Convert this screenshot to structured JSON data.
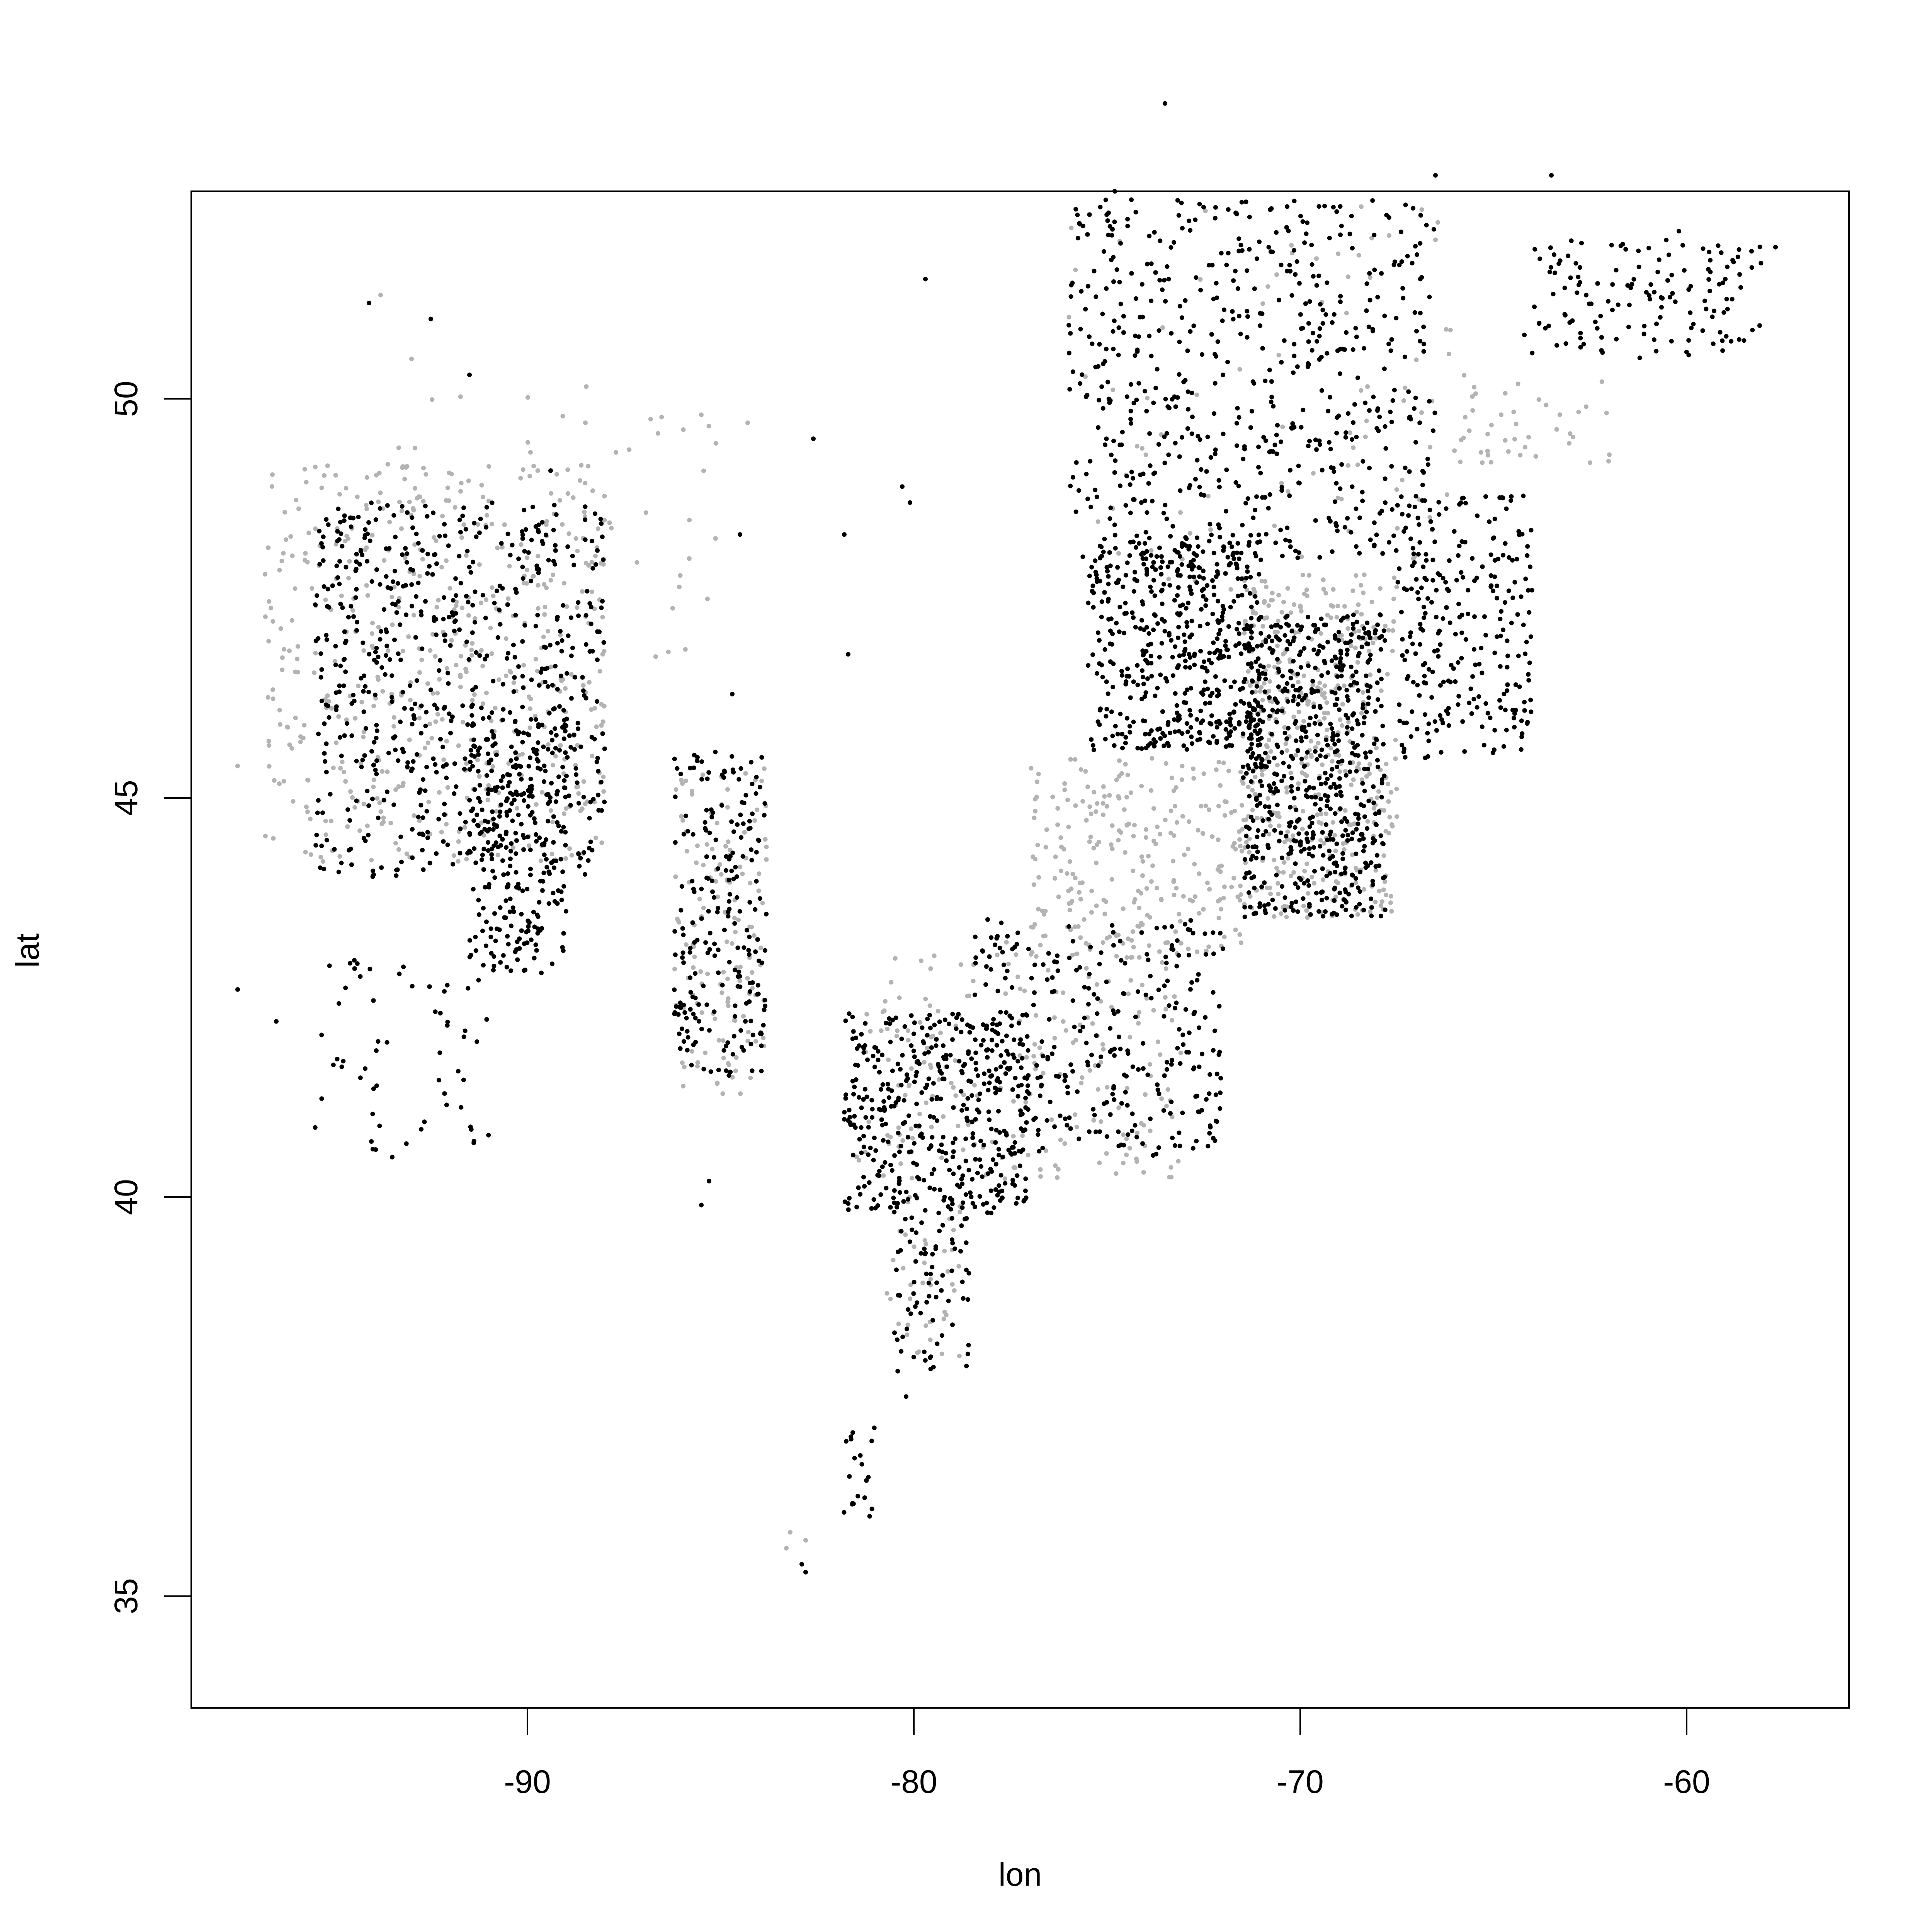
{
  "chart_data": {
    "type": "scatter",
    "title": "",
    "xlabel": "lon",
    "ylabel": "lat",
    "xlim": [
      -98.7,
      -55.8
    ],
    "ylim": [
      33.6,
      52.6
    ],
    "xticks": [
      -90,
      -80,
      -70,
      -60
    ],
    "yticks": [
      35,
      40,
      45,
      50
    ],
    "xtick_labels": [
      "-90",
      "-80",
      "-70",
      "-60"
    ],
    "ytick_labels": [
      "35",
      "40",
      "45",
      "50"
    ],
    "grid": false,
    "legend": "none",
    "series": [
      {
        "color": "#000000",
        "regions": [
          {
            "x": [
              -95.5,
              -88
            ],
            "y": [
              44,
              48.7
            ],
            "n": 650
          },
          {
            "x": [
              -91.5,
              -89
            ],
            "y": [
              42.8,
              46
            ],
            "n": 260
          },
          {
            "x": [
              -86.2,
              -83.8
            ],
            "y": [
              41.5,
              45.6
            ],
            "n": 220
          },
          {
            "x": [
              -81.8,
              -77
            ],
            "y": [
              39.8,
              42.3
            ],
            "n": 420
          },
          {
            "x": [
              -78.5,
              -72
            ],
            "y": [
              40.5,
              43.5
            ],
            "n": 300
          },
          {
            "x": [
              -75.5,
              -71
            ],
            "y": [
              45.6,
              48.3
            ],
            "n": 500
          },
          {
            "x": [
              -71.5,
              -67.8
            ],
            "y": [
              43.5,
              47.3
            ],
            "n": 650
          },
          {
            "x": [
              -67.5,
              -64
            ],
            "y": [
              45.5,
              48.8
            ],
            "n": 260
          },
          {
            "x": [
              -76,
              -66.5
            ],
            "y": [
              48,
              52.5
            ],
            "n": 600
          },
          {
            "x": [
              -64,
              -58
            ],
            "y": [
              50.5,
              52
            ],
            "n": 140
          },
          {
            "x": [
              -80.5,
              -78.5
            ],
            "y": [
              37.8,
              40
            ],
            "n": 80
          },
          {
            "x": [
              -82,
              -81
            ],
            "y": [
              36,
              37.2
            ],
            "n": 20
          },
          {
            "x": [
              -95.5,
              -91
            ],
            "y": [
              40.5,
              43
            ],
            "n": 60
          }
        ],
        "points": [
          [
            -82.8,
            35.3
          ],
          [
            -82.9,
            35.4
          ],
          [
            -63.5,
            52.8
          ],
          [
            -57.7,
            51.9
          ],
          [
            -74.8,
            52.6
          ],
          [
            -72.5,
            52.4
          ],
          [
            -66.5,
            52.8
          ],
          [
            -79.7,
            51.5
          ],
          [
            -94,
            40.6
          ],
          [
            -93.5,
            40.5
          ],
          [
            -97.5,
            42.6
          ],
          [
            -96.5,
            42.2
          ],
          [
            -85.5,
            39.9
          ],
          [
            -85.3,
            40.2
          ],
          [
            -78,
            39.8
          ],
          [
            -79,
            38.4
          ],
          [
            -80.5,
            38.3
          ],
          [
            -80.2,
            37.5
          ],
          [
            -94.1,
            51.2
          ],
          [
            -92.5,
            51
          ],
          [
            -91.5,
            50.3
          ],
          [
            -89.4,
            49.1
          ],
          [
            -84.5,
            48.3
          ],
          [
            -82.6,
            49.5
          ],
          [
            -81.8,
            48.3
          ],
          [
            -80.3,
            48.9
          ],
          [
            -80.1,
            48.7
          ],
          [
            -73.5,
            53.7
          ],
          [
            -64.2,
            50.8
          ],
          [
            -62.6,
            51.3
          ],
          [
            -60.2,
            52.1
          ],
          [
            -59,
            51.5
          ],
          [
            -61.5,
            50.9
          ],
          [
            -64.5,
            46.1
          ],
          [
            -64.2,
            46.2
          ],
          [
            -81.7,
            46.8
          ],
          [
            -84.7,
            46.3
          ]
        ]
      },
      {
        "color": "#b3b3b3",
        "regions": [
          {
            "x": [
              -96.8,
              -88
            ],
            "y": [
              44.2,
              49.2
            ],
            "n": 500
          },
          {
            "x": [
              -86.2,
              -83.8
            ],
            "y": [
              41.2,
              45.4
            ],
            "n": 140
          },
          {
            "x": [
              -81.5,
              -73
            ],
            "y": [
              40.2,
              43.2
            ],
            "n": 220
          },
          {
            "x": [
              -77,
              -71.5
            ],
            "y": [
              43,
              45.5
            ],
            "n": 260
          },
          {
            "x": [
              -71.5,
              -67.5
            ],
            "y": [
              43.5,
              47.8
            ],
            "n": 420
          },
          {
            "x": [
              -93.5,
              -85
            ],
            "y": [
              46.5,
              50.5
            ],
            "n": 70
          },
          {
            "x": [
              -66,
              -62
            ],
            "y": [
              49.2,
              50.3
            ],
            "n": 40
          },
          {
            "x": [
              -80.7,
              -78.8
            ],
            "y": [
              38,
              40
            ],
            "n": 40
          },
          {
            "x": [
              -76,
              -66
            ],
            "y": [
              47.5,
              52.5
            ],
            "n": 90
          }
        ],
        "points": [
          [
            -97.5,
            45.4
          ],
          [
            -93.8,
            51.3
          ],
          [
            -93,
            50.5
          ],
          [
            -88.5,
            49.7
          ],
          [
            -85.5,
            49.8
          ],
          [
            -84.3,
            49.7
          ],
          [
            -83.3,
            35.6
          ],
          [
            -82.8,
            35.7
          ],
          [
            -83.2,
            35.8
          ],
          [
            -62,
            49.3
          ],
          [
            -62.5,
            49.2
          ],
          [
            -64.8,
            49.8
          ]
        ]
      }
    ]
  }
}
